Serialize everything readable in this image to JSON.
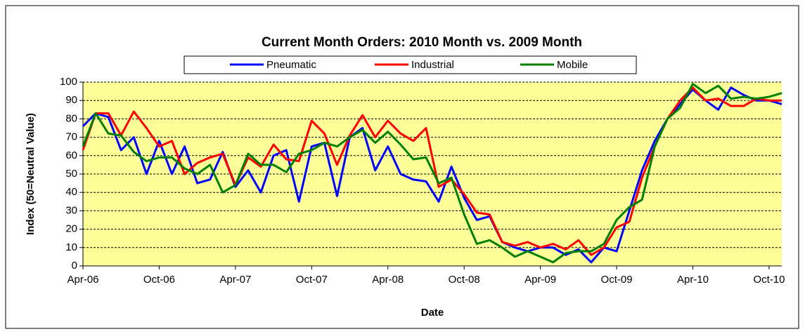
{
  "chart_data": {
    "type": "line",
    "title": "Current Month Orders: 2010 Month vs. 2009 Month",
    "y_label": "Index (50=Neutral Value)",
    "x_label": "Date",
    "categories": [
      "Apr-06",
      null,
      null,
      null,
      null,
      null,
      "Oct-06",
      null,
      null,
      null,
      null,
      null,
      "Apr-07",
      null,
      null,
      null,
      null,
      null,
      "Oct-07",
      null,
      null,
      null,
      null,
      null,
      "Apr-08",
      null,
      null,
      null,
      null,
      null,
      "Oct-08",
      null,
      null,
      null,
      null,
      null,
      "Apr-09",
      null,
      null,
      null,
      null,
      null,
      "Oct-09",
      null,
      null,
      null,
      null,
      null,
      "Apr-10",
      null,
      null,
      null,
      null,
      null,
      "Oct-10",
      null
    ],
    "series": [
      {
        "name": "Pneumatic",
        "color": "#0000ff",
        "values": [
          76,
          83,
          81,
          63,
          70,
          50,
          68,
          50,
          65,
          45,
          47,
          62,
          43,
          52,
          40,
          60,
          63,
          35,
          65,
          67,
          38,
          70,
          75,
          52,
          65,
          50,
          47,
          46,
          35,
          54,
          37,
          25,
          27,
          13,
          10,
          8,
          10,
          10,
          6,
          9,
          2,
          10,
          8,
          30,
          52,
          68,
          80,
          88,
          96,
          90,
          85,
          97,
          93,
          90,
          90,
          88
        ]
      },
      {
        "name": "Industrial",
        "color": "#ff0000",
        "values": [
          63,
          83,
          83,
          71,
          84,
          75,
          65,
          68,
          50,
          56,
          59,
          61,
          44,
          59,
          54,
          66,
          58,
          57,
          79,
          72,
          55,
          71,
          82,
          70,
          79,
          72,
          68,
          75,
          43,
          47,
          39,
          29,
          28,
          13,
          11,
          13,
          10,
          12,
          9,
          14,
          6,
          10,
          21,
          24,
          48,
          65,
          80,
          90,
          97,
          90,
          91,
          87,
          87,
          91,
          90,
          90
        ]
      },
      {
        "name": "Mobile",
        "color": "#008000",
        "values": [
          65,
          83,
          72,
          71,
          62,
          57,
          59,
          59,
          53,
          50,
          55,
          40,
          44,
          61,
          55,
          55,
          51,
          61,
          63,
          67,
          65,
          70,
          74,
          67,
          73,
          66,
          58,
          59,
          45,
          48,
          28,
          12,
          14,
          10,
          5,
          8,
          5,
          2,
          7,
          8,
          8,
          12,
          25,
          32,
          36,
          65,
          80,
          86,
          99,
          94,
          98,
          91,
          92,
          91,
          92,
          94
        ]
      }
    ],
    "ylim": [
      0,
      100
    ],
    "yticks": [
      0,
      10,
      20,
      30,
      40,
      50,
      60,
      70,
      80,
      90,
      100
    ],
    "grid": true,
    "background": "#ffff99"
  }
}
